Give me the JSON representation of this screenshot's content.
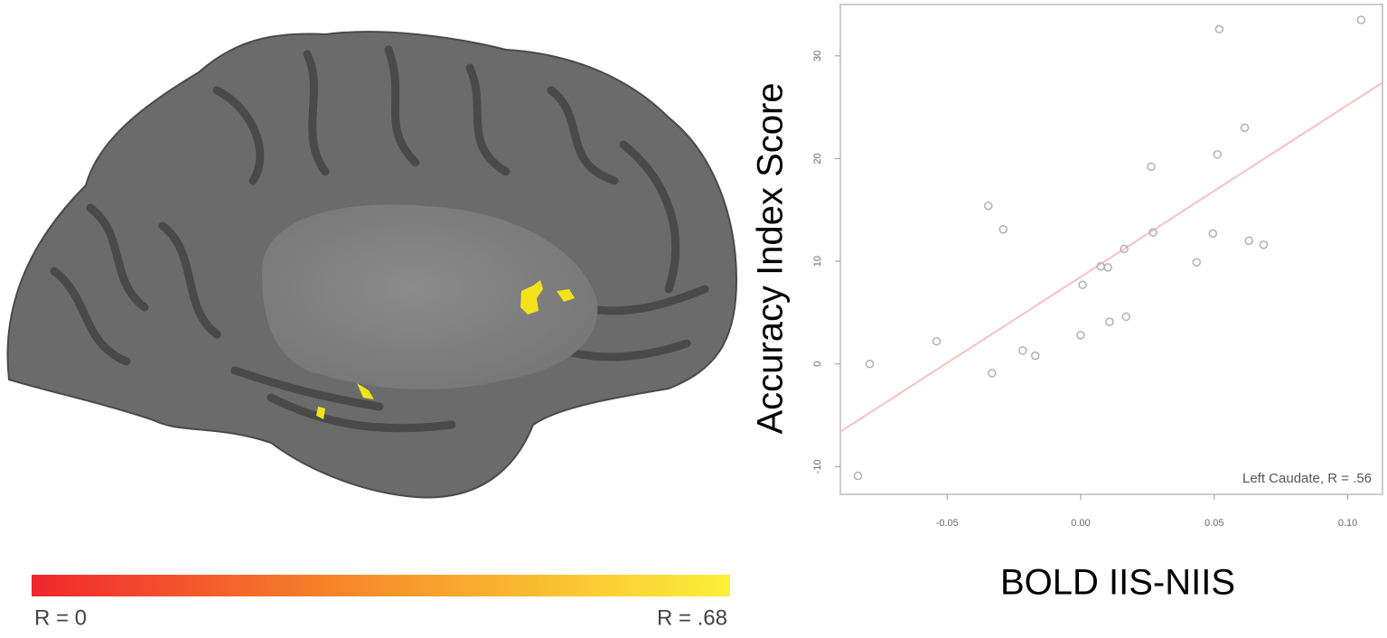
{
  "chart_data": {
    "type": "scatter",
    "x_label": "BOLD IIS-NIIS",
    "y_label": "Accuracy Index Score",
    "annotation": "Left Caudate, R = .56",
    "x": [
      -0.0834,
      -0.079,
      -0.054,
      -0.0346,
      -0.0332,
      -0.029,
      -0.0217,
      -0.017,
      0.0,
      0.0007,
      0.0075,
      0.0102,
      0.0108,
      0.0163,
      0.017,
      0.0264,
      0.0271,
      0.0434,
      0.0495,
      0.0512,
      0.0519,
      0.0614,
      0.063,
      0.0685,
      0.105
    ],
    "values": [
      -10.9,
      0,
      2.2,
      15.4,
      -0.9,
      13.1,
      1.3,
      0.8,
      2.8,
      7.7,
      9.5,
      9.4,
      4.1,
      11.2,
      4.6,
      19.2,
      12.8,
      9.9,
      12.7,
      20.4,
      32.6,
      23.0,
      12.0,
      11.6,
      33.5
    ],
    "color": "#b0b0b0",
    "fit_line": {
      "x": [
        -0.09,
        0.113
      ],
      "y": [
        -6.6,
        27.4
      ],
      "color": "#f6c1c1"
    },
    "xlim": [
      -0.09,
      0.113
    ],
    "ylim": [
      -12.7,
      35
    ],
    "xticks": [
      -0.05,
      {
        "value": 0,
        "label": "0.00"
      },
      0.05,
      {
        "value": 0.1,
        "label": "0.10"
      }
    ],
    "yticks": [
      -10,
      0,
      10,
      20,
      30
    ]
  },
  "colorbar": {
    "min_label": "R = 0",
    "max_label": "R = .68",
    "colors": [
      "#f0262c",
      "#f7932a",
      "#fbf03a"
    ]
  }
}
